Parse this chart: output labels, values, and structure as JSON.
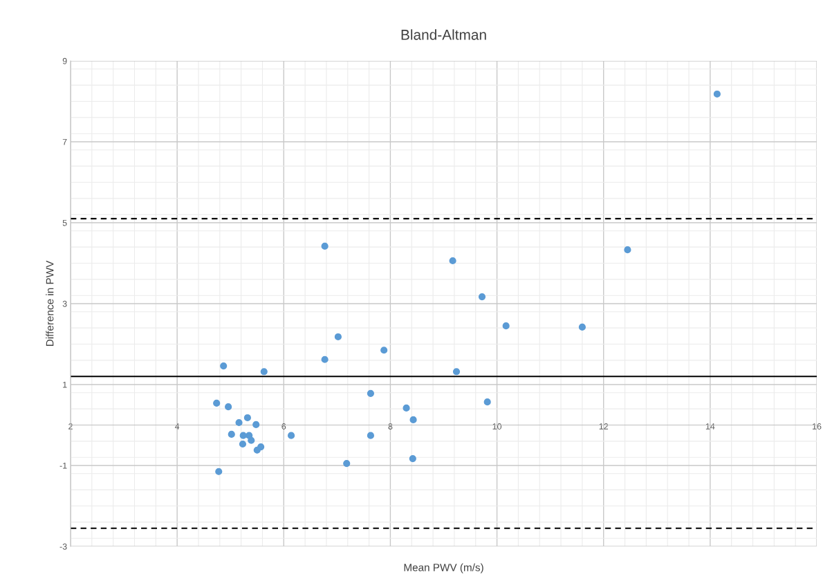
{
  "chart_data": {
    "type": "scatter",
    "title": "Bland-Altman",
    "xlabel": "Mean PWV (m/s)",
    "ylabel": "Difference in PWV",
    "x": [
      14.13,
      6.77,
      9.17,
      12.45,
      9.72,
      10.17,
      11.6,
      7.02,
      7.88,
      6.77,
      4.87,
      5.63,
      9.24,
      7.63,
      4.74,
      9.82,
      4.96,
      8.3,
      8.43,
      5.32,
      5.16,
      5.48,
      5.02,
      5.24,
      5.35,
      6.14,
      7.63,
      5.39,
      5.23,
      5.57,
      5.5,
      7.18,
      8.42,
      4.78
    ],
    "series": [
      {
        "color": "#5b9bd5",
        "values": [
          8.18,
          4.42,
          4.06,
          4.33,
          3.17,
          2.45,
          2.42,
          2.18,
          1.85,
          1.62,
          1.46,
          1.32,
          1.32,
          0.78,
          0.54,
          0.57,
          0.45,
          0.42,
          0.13,
          0.18,
          0.06,
          0.01,
          -0.23,
          -0.26,
          -0.26,
          -0.26,
          -0.26,
          -0.38,
          -0.47,
          -0.54,
          -0.62,
          -0.95,
          -0.83,
          -1.15
        ]
      }
    ],
    "xlim": [
      2,
      16
    ],
    "xticks": [
      2,
      4,
      6,
      8,
      10,
      12,
      14,
      16
    ],
    "ylim": [
      -3,
      9
    ],
    "yticks": [
      -3,
      -1,
      1,
      3,
      5,
      7,
      9
    ],
    "ref_lines": [
      {
        "axis": "y",
        "value": 1.2,
        "label": null,
        "color": "#000000",
        "line_style": "solid"
      },
      {
        "axis": "y",
        "value": 5.1,
        "label": null,
        "color": "#000000",
        "line_style": "dashed"
      },
      {
        "axis": "y",
        "value": -2.55,
        "label": null,
        "color": "#000000",
        "line_style": "dashed"
      }
    ],
    "grid": true,
    "marker": "circle",
    "legend": false
  }
}
